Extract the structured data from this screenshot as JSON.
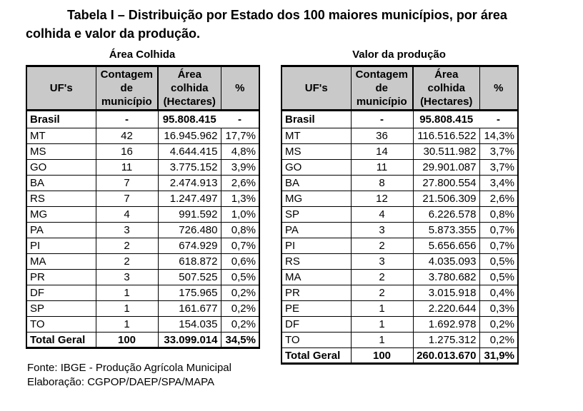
{
  "page": {
    "title_line1": "Tabela I – Distribuição por Estado dos 100 maiores municípios, por área",
    "title_line2": "colhida e valor da produção.",
    "footer_line1": "Fonte: IBGE - Produção Agrícola Municipal",
    "footer_line2": "Elaboração: CGPOP/DAEP/SPA/MAPA"
  },
  "colors": {
    "header_bg": "#c9c9c9",
    "border": "#000000",
    "text": "#000000",
    "page_bg": "#ffffff"
  },
  "tables": [
    {
      "caption": "Área Colhida",
      "headers": [
        "UF's",
        "Contagem de município",
        "Área colhida (Hectares)",
        "%"
      ],
      "brasil_row": {
        "uf": "Brasil",
        "count": "-",
        "area": "95.808.415",
        "pct": "-"
      },
      "rows": [
        {
          "uf": "MT",
          "count": "42",
          "area": "16.945.962",
          "pct": "17,7%"
        },
        {
          "uf": "MS",
          "count": "16",
          "area": "4.644.415",
          "pct": "4,8%"
        },
        {
          "uf": "GO",
          "count": "11",
          "area": "3.775.152",
          "pct": "3,9%"
        },
        {
          "uf": "BA",
          "count": "7",
          "area": "2.474.913",
          "pct": "2,6%"
        },
        {
          "uf": "RS",
          "count": "7",
          "area": "1.247.497",
          "pct": "1,3%"
        },
        {
          "uf": "MG",
          "count": "4",
          "area": "991.592",
          "pct": "1,0%"
        },
        {
          "uf": "PA",
          "count": "3",
          "area": "726.480",
          "pct": "0,8%"
        },
        {
          "uf": "PI",
          "count": "2",
          "area": "674.929",
          "pct": "0,7%"
        },
        {
          "uf": "MA",
          "count": "2",
          "area": "618.872",
          "pct": "0,6%"
        },
        {
          "uf": "PR",
          "count": "3",
          "area": "507.525",
          "pct": "0,5%"
        },
        {
          "uf": "DF",
          "count": "1",
          "area": "175.965",
          "pct": "0,2%"
        },
        {
          "uf": "SP",
          "count": "1",
          "area": "161.677",
          "pct": "0,2%"
        },
        {
          "uf": "TO",
          "count": "1",
          "area": "154.035",
          "pct": "0,2%"
        }
      ],
      "total_row": {
        "uf": "Total Geral",
        "count": "100",
        "area": "33.099.014",
        "pct": "34,5%"
      }
    },
    {
      "caption": "Valor da produção",
      "headers": [
        "UF's",
        "Contagem de município",
        "Área colhida (Hectares)",
        "%"
      ],
      "brasil_row": {
        "uf": "Brasil",
        "count": "-",
        "area": "95.808.415",
        "pct": "-"
      },
      "rows": [
        {
          "uf": "MT",
          "count": "36",
          "area": "116.516.522",
          "pct": "14,3%"
        },
        {
          "uf": "MS",
          "count": "14",
          "area": "30.511.982",
          "pct": "3,7%"
        },
        {
          "uf": "GO",
          "count": "11",
          "area": "29.901.087",
          "pct": "3,7%"
        },
        {
          "uf": "BA",
          "count": "8",
          "area": "27.800.554",
          "pct": "3,4%"
        },
        {
          "uf": "MG",
          "count": "12",
          "area": "21.506.309",
          "pct": "2,6%"
        },
        {
          "uf": "SP",
          "count": "4",
          "area": "6.226.578",
          "pct": "0,8%"
        },
        {
          "uf": "PA",
          "count": "3",
          "area": "5.873.355",
          "pct": "0,7%"
        },
        {
          "uf": "PI",
          "count": "2",
          "area": "5.656.656",
          "pct": "0,7%"
        },
        {
          "uf": "RS",
          "count": "3",
          "area": "4.035.093",
          "pct": "0,5%"
        },
        {
          "uf": "MA",
          "count": "2",
          "area": "3.780.682",
          "pct": "0,5%"
        },
        {
          "uf": "PR",
          "count": "2",
          "area": "3.015.918",
          "pct": "0,4%"
        },
        {
          "uf": "PE",
          "count": "1",
          "area": "2.220.644",
          "pct": "0,3%"
        },
        {
          "uf": "DF",
          "count": "1",
          "area": "1.692.978",
          "pct": "0,2%"
        },
        {
          "uf": "TO",
          "count": "1",
          "area": "1.275.312",
          "pct": "0,2%"
        }
      ],
      "total_row": {
        "uf": "Total Geral",
        "count": "100",
        "area": "260.013.670",
        "pct": "31,9%"
      }
    }
  ]
}
